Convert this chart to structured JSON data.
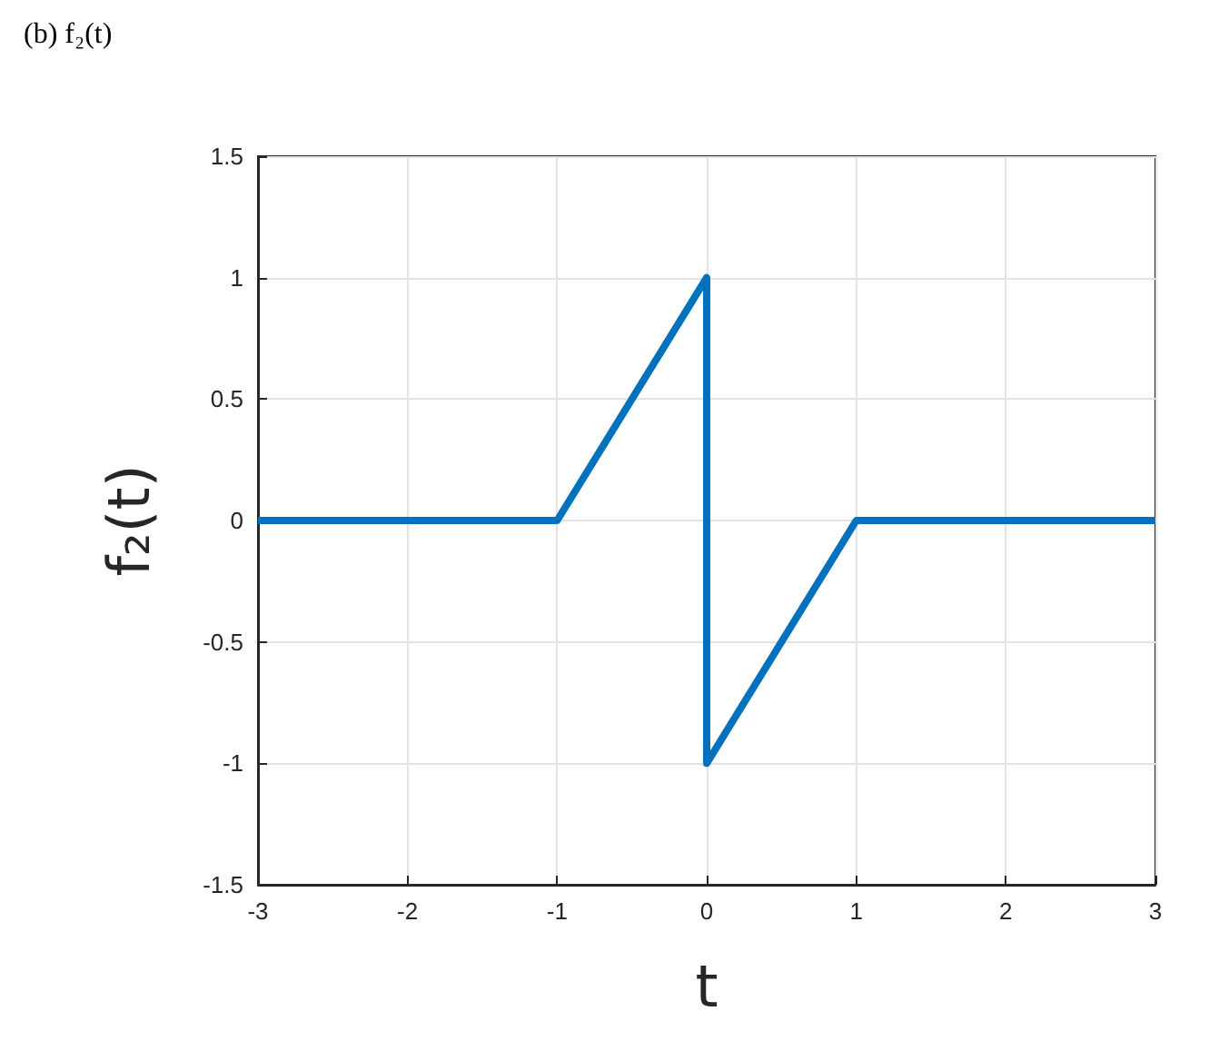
{
  "chart_data": {
    "type": "line",
    "title": "(b) f₂(t)",
    "xlabel": "t",
    "ylabel": "f₂(t)",
    "series": [
      {
        "color": "#0072bd",
        "x": [
          -3,
          -1,
          0,
          0,
          1,
          3
        ],
        "values": [
          0,
          0,
          1,
          -1,
          0,
          0
        ]
      }
    ],
    "xlim": [
      -3,
      3
    ],
    "xticks": [
      -3,
      -2,
      -1,
      0,
      1,
      2,
      3
    ],
    "ylim": [
      -1.5,
      1.5
    ],
    "yticks": [
      -1.5,
      -1,
      -0.5,
      0,
      0.5,
      1,
      1.5
    ],
    "grid": true,
    "marker": "none",
    "line_style": "solid"
  }
}
